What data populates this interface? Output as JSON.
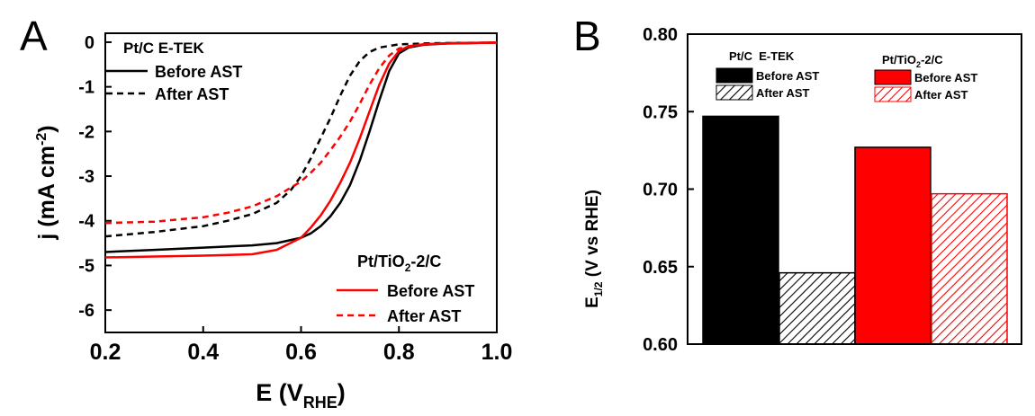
{
  "chart_data": [
    {
      "type": "line",
      "panel_label": "A",
      "xlabel": "E (V",
      "xlabel_sub": "RHE",
      "xlabel_close": ")",
      "ylabel": "j (mA cm",
      "ylabel_sup": "-2",
      "ylabel_close": ")",
      "xlim": [
        0.2,
        1.0
      ],
      "ylim": [
        -6.5,
        0.2
      ],
      "xticks": [
        0.2,
        0.4,
        0.6,
        0.8,
        1.0
      ],
      "xtick_labels": [
        "0.2",
        "0.4",
        "0.6",
        "0.8",
        "1.0"
      ],
      "yticks": [
        0,
        -1,
        -2,
        -3,
        -4,
        -5,
        -6
      ],
      "ytick_labels": [
        "0",
        "-1",
        "-2",
        "-3",
        "-4",
        "-5",
        "-6"
      ],
      "legend_groups": [
        {
          "title": "Pt/C E-TEK",
          "placement": "top-left"
        },
        {
          "title": "Pt/TiO",
          "title_sub": "2",
          "title_after": "-2/C",
          "placement": "bottom-right"
        }
      ],
      "series": [
        {
          "name": "Before AST",
          "group": 0,
          "color": "#000000",
          "dash": "solid",
          "x": [
            0.2,
            0.3,
            0.4,
            0.5,
            0.55,
            0.6,
            0.62,
            0.64,
            0.66,
            0.68,
            0.7,
            0.72,
            0.74,
            0.76,
            0.78,
            0.8,
            0.82,
            0.85,
            0.9,
            0.95,
            1.0
          ],
          "y": [
            -4.7,
            -4.65,
            -4.6,
            -4.55,
            -4.5,
            -4.38,
            -4.28,
            -4.12,
            -3.9,
            -3.6,
            -3.2,
            -2.65,
            -2.0,
            -1.3,
            -0.65,
            -0.25,
            -0.12,
            -0.06,
            -0.03,
            -0.02,
            -0.01
          ]
        },
        {
          "name": "After AST",
          "group": 0,
          "color": "#000000",
          "dash": "dashed",
          "x": [
            0.2,
            0.3,
            0.4,
            0.45,
            0.5,
            0.55,
            0.58,
            0.6,
            0.62,
            0.64,
            0.66,
            0.68,
            0.7,
            0.72,
            0.74,
            0.76,
            0.8,
            0.85,
            0.9,
            1.0
          ],
          "y": [
            -4.35,
            -4.25,
            -4.12,
            -4.0,
            -3.85,
            -3.6,
            -3.3,
            -3.0,
            -2.6,
            -2.15,
            -1.7,
            -1.2,
            -0.75,
            -0.42,
            -0.22,
            -0.12,
            -0.05,
            -0.03,
            -0.02,
            -0.01
          ]
        },
        {
          "name": "Before AST",
          "group": 1,
          "color": "#ff0000",
          "dash": "solid",
          "x": [
            0.2,
            0.3,
            0.4,
            0.5,
            0.55,
            0.6,
            0.62,
            0.64,
            0.66,
            0.68,
            0.7,
            0.72,
            0.74,
            0.76,
            0.78,
            0.8,
            0.82,
            0.85,
            0.9,
            1.0
          ],
          "y": [
            -4.82,
            -4.8,
            -4.78,
            -4.75,
            -4.65,
            -4.38,
            -4.15,
            -3.88,
            -3.55,
            -3.15,
            -2.7,
            -2.15,
            -1.55,
            -0.95,
            -0.48,
            -0.2,
            -0.09,
            -0.05,
            -0.03,
            -0.01
          ]
        },
        {
          "name": "After AST",
          "group": 1,
          "color": "#ff0000",
          "dash": "dashed",
          "x": [
            0.2,
            0.3,
            0.4,
            0.45,
            0.5,
            0.55,
            0.6,
            0.62,
            0.64,
            0.66,
            0.68,
            0.7,
            0.72,
            0.74,
            0.76,
            0.78,
            0.8,
            0.85,
            0.9,
            1.0
          ],
          "y": [
            -4.05,
            -4.02,
            -3.92,
            -3.82,
            -3.68,
            -3.45,
            -3.12,
            -2.92,
            -2.7,
            -2.42,
            -2.12,
            -1.78,
            -1.38,
            -0.95,
            -0.58,
            -0.3,
            -0.14,
            -0.05,
            -0.02,
            -0.01
          ]
        }
      ]
    },
    {
      "type": "bar",
      "panel_label": "B",
      "ylabel": "E",
      "ylabel_sub": "1/2",
      "ylabel_after": " (V vs RHE)",
      "ylim": [
        0.6,
        0.8
      ],
      "yticks": [
        0.6,
        0.65,
        0.7,
        0.75,
        0.8
      ],
      "ytick_labels": [
        "0.60",
        "0.65",
        "0.70",
        "0.75",
        "0.80"
      ],
      "legend_groups": [
        {
          "title": "Pt/C  E-TEK",
          "placement": "top-left"
        },
        {
          "title": "Pt/TiO",
          "title_sub": "2",
          "title_after": "-2/C",
          "placement": "top-right"
        }
      ],
      "series": [
        {
          "name": "Before AST",
          "group": 0,
          "value": 0.747,
          "color": "#000000",
          "fill": "solid"
        },
        {
          "name": "After AST",
          "group": 0,
          "value": 0.646,
          "color": "#000000",
          "fill": "hatched"
        },
        {
          "name": "Before AST",
          "group": 1,
          "value": 0.727,
          "color": "#ff0000",
          "fill": "solid"
        },
        {
          "name": "After AST",
          "group": 1,
          "value": 0.697,
          "color": "#ff0000",
          "fill": "hatched"
        }
      ]
    }
  ]
}
